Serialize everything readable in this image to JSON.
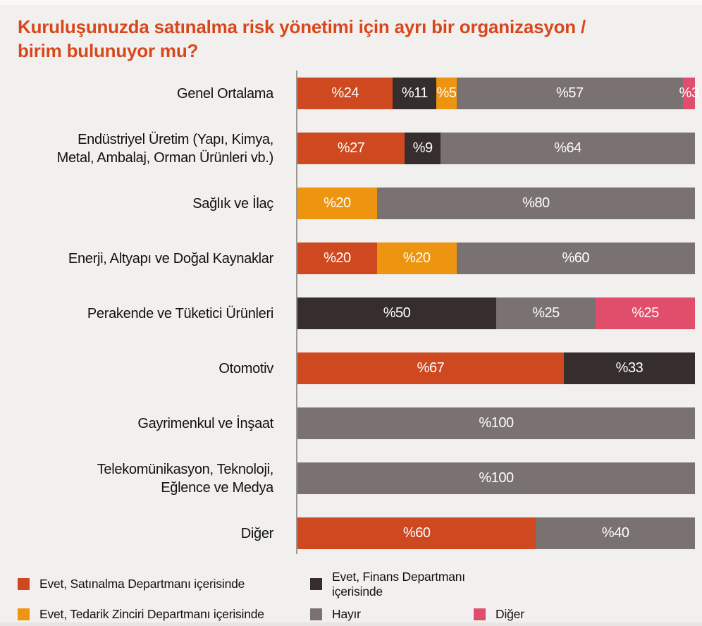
{
  "colors": {
    "background": "#F2F0EE",
    "title_text": "#D8471C",
    "axis_line": "#9A9795",
    "category_text": "#111111",
    "value_text": "#FFFFFF",
    "legend_text": "#111111"
  },
  "chart_data": {
    "type": "bar",
    "orientation": "horizontal",
    "stacked": true,
    "title": "Kuruluşunuzda satınalma risk yönetimi için ayrı bir organizasyon /\nbirim bulunuyor mu?",
    "value_prefix": "%",
    "x_range": [
      0,
      100
    ],
    "grid": false,
    "legend_position": "bottom",
    "series": [
      {
        "key": "satinalma",
        "label": "Evet, Satınalma Departmanı içerisinde",
        "color": "#CE4920"
      },
      {
        "key": "finans",
        "label": "Evet, Finans Departmanı içerisinde",
        "color": "#352E2C"
      },
      {
        "key": "tedarik",
        "label": "Evet, Tedarik Zinciri Departmanı içerisinde",
        "color": "#ED9411"
      },
      {
        "key": "hayir",
        "label": "Hayır",
        "color": "#7A7270"
      },
      {
        "key": "diger",
        "label": "Diğer",
        "color": "#E04E6C"
      }
    ],
    "rows": [
      {
        "category": "Genel Ortalama",
        "segments": [
          {
            "series": "satinalma",
            "value": 24
          },
          {
            "series": "finans",
            "value": 11
          },
          {
            "series": "tedarik",
            "value": 5
          },
          {
            "series": "hayir",
            "value": 57
          },
          {
            "series": "diger",
            "value": 3
          }
        ]
      },
      {
        "category": "Endüstriyel Üretim (Yapı, Kimya,\nMetal, Ambalaj, Orman Ürünleri vb.)",
        "segments": [
          {
            "series": "satinalma",
            "value": 27
          },
          {
            "series": "finans",
            "value": 9
          },
          {
            "series": "hayir",
            "value": 64
          }
        ]
      },
      {
        "category": "Sağlık ve İlaç",
        "segments": [
          {
            "series": "tedarik",
            "value": 20
          },
          {
            "series": "hayir",
            "value": 80
          }
        ]
      },
      {
        "category": "Enerji, Altyapı ve Doğal Kaynaklar",
        "segments": [
          {
            "series": "satinalma",
            "value": 20
          },
          {
            "series": "tedarik",
            "value": 20
          },
          {
            "series": "hayir",
            "value": 60
          }
        ]
      },
      {
        "category": "Perakende ve Tüketici Ürünleri",
        "segments": [
          {
            "series": "finans",
            "value": 50
          },
          {
            "series": "hayir",
            "value": 25
          },
          {
            "series": "diger",
            "value": 25
          }
        ]
      },
      {
        "category": "Otomotiv",
        "segments": [
          {
            "series": "satinalma",
            "value": 67
          },
          {
            "series": "finans",
            "value": 33
          }
        ]
      },
      {
        "category": "Gayrimenkul ve İnşaat",
        "segments": [
          {
            "series": "hayir",
            "value": 100
          }
        ]
      },
      {
        "category": "Telekomünikasyon, Teknoloji,\nEğlence ve Medya",
        "segments": [
          {
            "series": "hayir",
            "value": 100
          }
        ]
      },
      {
        "category": "Diğer",
        "segments": [
          {
            "series": "satinalma",
            "value": 60
          },
          {
            "series": "hayir",
            "value": 40
          }
        ]
      }
    ]
  }
}
